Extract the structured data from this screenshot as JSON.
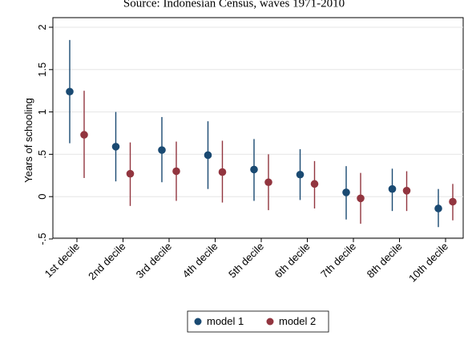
{
  "source_note": "Source: Indonesian Census, waves 1971-2010",
  "chart_data": {
    "type": "scatter",
    "ylabel": "Years of schooling",
    "ylim": [
      -0.5,
      2
    ],
    "yticks": [
      -0.5,
      0,
      0.5,
      1,
      1.5,
      2
    ],
    "ytick_labels": [
      "-.5",
      "0",
      ".5",
      "1",
      "1.5",
      "2"
    ],
    "grid": true,
    "legend_position": "bottom",
    "categories": [
      "1st decile",
      "2nd decile",
      "3rd decile",
      "4th decile",
      "5th decile",
      "6th decile",
      "7th decile",
      "8th decile",
      "10th decile"
    ],
    "series": [
      {
        "name": "model 1",
        "color": "#1a4a72",
        "values": [
          1.24,
          0.59,
          0.55,
          0.49,
          0.32,
          0.26,
          0.05,
          0.09,
          -0.14
        ],
        "ci_low": [
          0.63,
          0.18,
          0.17,
          0.09,
          -0.05,
          -0.04,
          -0.27,
          -0.17,
          -0.36
        ],
        "ci_high": [
          1.85,
          1.0,
          0.94,
          0.89,
          0.68,
          0.56,
          0.36,
          0.33,
          0.09
        ]
      },
      {
        "name": "model 2",
        "color": "#92353f",
        "values": [
          0.73,
          0.27,
          0.3,
          0.29,
          0.17,
          0.15,
          -0.02,
          0.07,
          -0.06
        ],
        "ci_low": [
          0.22,
          -0.11,
          -0.05,
          -0.07,
          -0.16,
          -0.14,
          -0.32,
          -0.17,
          -0.28
        ],
        "ci_high": [
          1.25,
          0.64,
          0.65,
          0.66,
          0.5,
          0.42,
          0.28,
          0.3,
          0.15
        ]
      }
    ]
  }
}
